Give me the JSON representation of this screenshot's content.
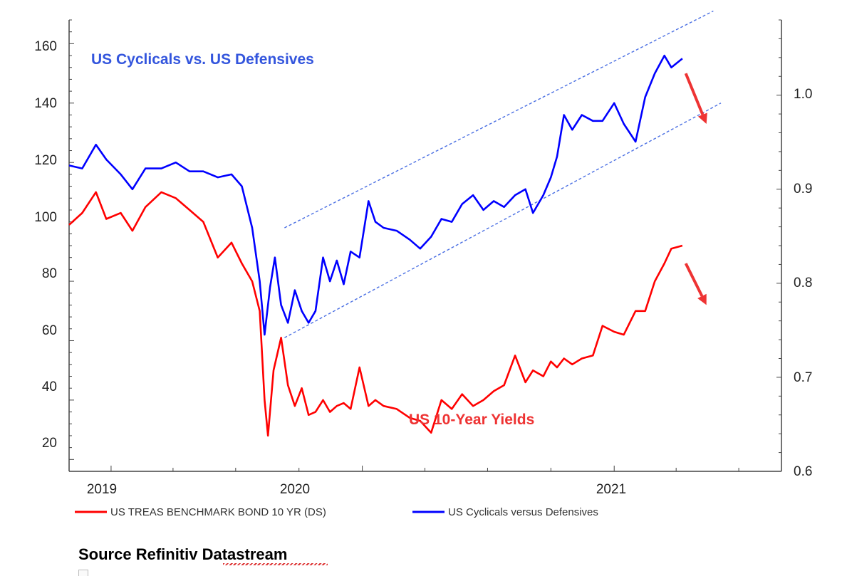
{
  "chart_data": {
    "type": "line",
    "annotations": {
      "cyclicals_title": "US Cyclicals vs. US Defensives",
      "yields_title": "US 10-Year Yields"
    },
    "x_ticks": [
      "2019",
      "2020",
      "2021"
    ],
    "left_axis": {
      "ticks": [
        "160",
        "140",
        "120",
        "100",
        "80",
        "60",
        "40",
        "20"
      ],
      "ylim": [
        16,
        168
      ]
    },
    "right_axis": {
      "ticks": [
        "1.0",
        "0.9",
        "0.8",
        "0.7",
        "0.6"
      ],
      "ylim": [
        0.6,
        1.08
      ]
    },
    "legend": {
      "placement": "bottom",
      "items": [
        {
          "label": "US TREAS BENCHMARK BOND 10 YR (DS)",
          "color": "#ff0000"
        },
        {
          "label": "US Cyclicals versus Defensives",
          "color": "#0000ff"
        }
      ]
    },
    "x_range": [
      "2018-11-01",
      "2021-09-01"
    ],
    "series": [
      {
        "name": "US Cyclicals versus Defensives",
        "color": "#0000ff",
        "points": [
          [
            "2018-11-01",
            119
          ],
          [
            "2018-11-20",
            118
          ],
          [
            "2018-12-10",
            126
          ],
          [
            "2018-12-25",
            121
          ],
          [
            "2019-01-15",
            116
          ],
          [
            "2019-02-01",
            111
          ],
          [
            "2019-02-20",
            118
          ],
          [
            "2019-03-15",
            118
          ],
          [
            "2019-04-05",
            120
          ],
          [
            "2019-04-25",
            117
          ],
          [
            "2019-05-15",
            117
          ],
          [
            "2019-06-05",
            115
          ],
          [
            "2019-06-25",
            116
          ],
          [
            "2019-07-10",
            112
          ],
          [
            "2019-07-25",
            98
          ],
          [
            "2019-08-05",
            80
          ],
          [
            "2019-08-12",
            62
          ],
          [
            "2019-08-20",
            78
          ],
          [
            "2019-08-27",
            88
          ],
          [
            "2019-09-05",
            72
          ],
          [
            "2019-09-15",
            66
          ],
          [
            "2019-09-25",
            77
          ],
          [
            "2019-10-05",
            70
          ],
          [
            "2019-10-15",
            66
          ],
          [
            "2019-10-25",
            70
          ],
          [
            "2019-11-05",
            88
          ],
          [
            "2019-11-15",
            80
          ],
          [
            "2019-11-25",
            87
          ],
          [
            "2019-12-05",
            79
          ],
          [
            "2019-12-15",
            90
          ],
          [
            "2019-12-28",
            88
          ],
          [
            "2020-01-10",
            107
          ],
          [
            "2020-01-20",
            100
          ],
          [
            "2020-02-01",
            98
          ],
          [
            "2020-02-20",
            97
          ],
          [
            "2020-03-10",
            94
          ],
          [
            "2020-03-25",
            91
          ],
          [
            "2020-04-10",
            95
          ],
          [
            "2020-04-25",
            101
          ],
          [
            "2020-05-10",
            100
          ],
          [
            "2020-05-25",
            106
          ],
          [
            "2020-06-10",
            109
          ],
          [
            "2020-06-25",
            104
          ],
          [
            "2020-07-10",
            107
          ],
          [
            "2020-07-25",
            105
          ],
          [
            "2020-08-10",
            109
          ],
          [
            "2020-08-25",
            111
          ],
          [
            "2020-09-05",
            103
          ],
          [
            "2020-09-20",
            109
          ],
          [
            "2020-10-01",
            115
          ],
          [
            "2020-10-10",
            122
          ],
          [
            "2020-10-20",
            136
          ],
          [
            "2020-11-01",
            131
          ],
          [
            "2020-11-15",
            136
          ],
          [
            "2020-12-01",
            134
          ],
          [
            "2020-12-15",
            134
          ],
          [
            "2021-01-01",
            140
          ],
          [
            "2021-01-15",
            133
          ],
          [
            "2021-02-01",
            127
          ],
          [
            "2021-02-15",
            142
          ],
          [
            "2021-03-01",
            150
          ],
          [
            "2021-03-15",
            156
          ],
          [
            "2021-03-25",
            152
          ],
          [
            "2021-04-10",
            155
          ]
        ]
      },
      {
        "name": "US TREAS BENCHMARK BOND 10 YR",
        "color": "#ff0000",
        "points": [
          [
            "2018-11-01",
            99
          ],
          [
            "2018-11-20",
            103
          ],
          [
            "2018-12-10",
            110
          ],
          [
            "2018-12-25",
            101
          ],
          [
            "2019-01-15",
            103
          ],
          [
            "2019-02-01",
            97
          ],
          [
            "2019-02-20",
            105
          ],
          [
            "2019-03-15",
            110
          ],
          [
            "2019-04-05",
            108
          ],
          [
            "2019-04-25",
            104
          ],
          [
            "2019-05-15",
            100
          ],
          [
            "2019-06-05",
            88
          ],
          [
            "2019-06-25",
            93
          ],
          [
            "2019-07-10",
            86
          ],
          [
            "2019-07-25",
            80
          ],
          [
            "2019-08-05",
            70
          ],
          [
            "2019-08-12",
            40
          ],
          [
            "2019-08-17",
            28
          ],
          [
            "2019-08-25",
            50
          ],
          [
            "2019-09-05",
            61
          ],
          [
            "2019-09-15",
            45
          ],
          [
            "2019-09-25",
            38
          ],
          [
            "2019-10-05",
            44
          ],
          [
            "2019-10-15",
            35
          ],
          [
            "2019-10-25",
            36
          ],
          [
            "2019-11-05",
            40
          ],
          [
            "2019-11-15",
            36
          ],
          [
            "2019-11-25",
            38
          ],
          [
            "2019-12-05",
            39
          ],
          [
            "2019-12-15",
            37
          ],
          [
            "2019-12-28",
            51
          ],
          [
            "2020-01-10",
            38
          ],
          [
            "2020-01-20",
            40
          ],
          [
            "2020-02-01",
            38
          ],
          [
            "2020-02-20",
            37
          ],
          [
            "2020-03-10",
            34
          ],
          [
            "2020-03-25",
            33
          ],
          [
            "2020-04-10",
            29
          ],
          [
            "2020-04-25",
            40
          ],
          [
            "2020-05-10",
            37
          ],
          [
            "2020-05-25",
            42
          ],
          [
            "2020-06-10",
            38
          ],
          [
            "2020-06-25",
            40
          ],
          [
            "2020-07-10",
            43
          ],
          [
            "2020-07-25",
            45
          ],
          [
            "2020-08-10",
            55
          ],
          [
            "2020-08-25",
            46
          ],
          [
            "2020-09-05",
            50
          ],
          [
            "2020-09-20",
            48
          ],
          [
            "2020-10-01",
            53
          ],
          [
            "2020-10-10",
            51
          ],
          [
            "2020-10-20",
            54
          ],
          [
            "2020-11-01",
            52
          ],
          [
            "2020-11-15",
            54
          ],
          [
            "2020-12-01",
            55
          ],
          [
            "2020-12-15",
            65
          ],
          [
            "2021-01-01",
            63
          ],
          [
            "2021-01-15",
            62
          ],
          [
            "2021-02-01",
            70
          ],
          [
            "2021-02-15",
            70
          ],
          [
            "2021-03-01",
            80
          ],
          [
            "2021-03-15",
            86
          ],
          [
            "2021-03-25",
            91
          ],
          [
            "2021-04-10",
            92
          ]
        ]
      }
    ],
    "trend_channel": {
      "upper": [
        [
          "2019-09-10",
          98
        ],
        [
          "2021-05-25",
          171
        ]
      ],
      "lower": [
        [
          "2019-09-10",
          61
        ],
        [
          "2021-06-05",
          140
        ]
      ]
    },
    "arrows": [
      {
        "from": [
          "2021-04-15",
          150
        ],
        "to": [
          "2021-05-15",
          133
        ],
        "color": "#ee3333"
      },
      {
        "from": [
          "2021-04-15",
          86
        ],
        "to": [
          "2021-05-15",
          72
        ],
        "color": "#ee3333"
      }
    ]
  },
  "source_text": "Source Refinitiv Datastream"
}
